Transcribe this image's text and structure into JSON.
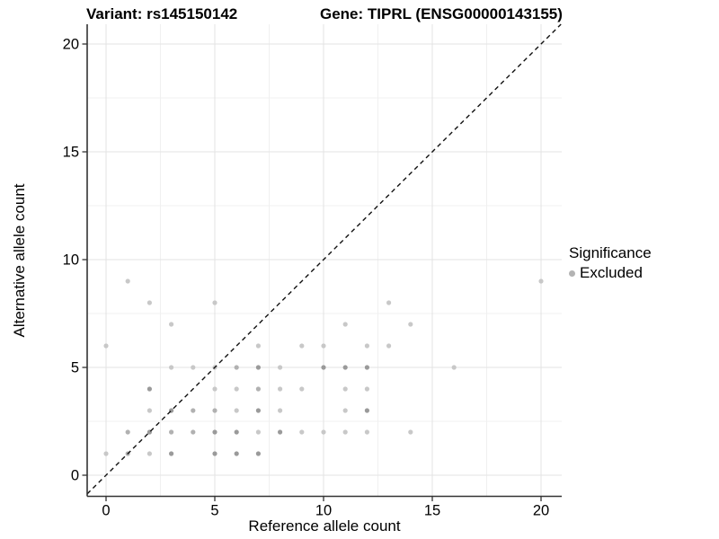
{
  "header": {
    "title_left": "Variant: rs145150142",
    "title_right": "Gene: TIPRL (ENSG00000143155)"
  },
  "colors": {
    "background": "#ffffff",
    "text": "#000000",
    "axis_line": "#333333",
    "grid_major": "#e3e3e3",
    "grid_minor": "#f0f0f0",
    "identity_line": "#111111",
    "point_light": "#c8c8c8",
    "point_medium": "#b1b1b1",
    "point_dark": "#9a9a9a",
    "legend_dot": "#b3b3b3"
  },
  "chart_data": {
    "type": "scatter",
    "title": "Variant: rs145150142 | Gene: TIPRL (ENSG00000143155)",
    "xlabel": "Reference allele count",
    "ylabel": "Alternative allele count",
    "xlim": [
      -1,
      21
    ],
    "ylim": [
      -1,
      21
    ],
    "x_ticks": [
      0,
      5,
      10,
      15,
      20
    ],
    "y_ticks": [
      0,
      5,
      10,
      15,
      20
    ],
    "x_minor": [
      2.5,
      7.5,
      12.5,
      17.5
    ],
    "y_minor": [
      2.5,
      7.5,
      12.5,
      17.5
    ],
    "grid": true,
    "identity_line": {
      "style": "dashed",
      "slope": 1,
      "intercept": 0
    },
    "legend": {
      "title": "Significance",
      "position": "right",
      "items": [
        "Excluded"
      ]
    },
    "points": [
      {
        "x": 1,
        "y": 9,
        "shade": "light"
      },
      {
        "x": 20,
        "y": 9,
        "shade": "light"
      },
      {
        "x": 2,
        "y": 8,
        "shade": "light"
      },
      {
        "x": 5,
        "y": 8,
        "shade": "light"
      },
      {
        "x": 13,
        "y": 8,
        "shade": "light"
      },
      {
        "x": 3,
        "y": 7,
        "shade": "light"
      },
      {
        "x": 11,
        "y": 7,
        "shade": "light"
      },
      {
        "x": 14,
        "y": 7,
        "shade": "light"
      },
      {
        "x": 0,
        "y": 6,
        "shade": "light"
      },
      {
        "x": 7,
        "y": 6,
        "shade": "light"
      },
      {
        "x": 9,
        "y": 6,
        "shade": "light"
      },
      {
        "x": 10,
        "y": 6,
        "shade": "light"
      },
      {
        "x": 12,
        "y": 6,
        "shade": "light"
      },
      {
        "x": 13,
        "y": 6,
        "shade": "light"
      },
      {
        "x": 3,
        "y": 5,
        "shade": "light"
      },
      {
        "x": 4,
        "y": 5,
        "shade": "light"
      },
      {
        "x": 5,
        "y": 5,
        "shade": "light"
      },
      {
        "x": 6,
        "y": 5,
        "shade": "medium"
      },
      {
        "x": 7,
        "y": 5,
        "shade": "dark"
      },
      {
        "x": 8,
        "y": 5,
        "shade": "light"
      },
      {
        "x": 10,
        "y": 5,
        "shade": "dark"
      },
      {
        "x": 11,
        "y": 5,
        "shade": "dark"
      },
      {
        "x": 12,
        "y": 5,
        "shade": "dark"
      },
      {
        "x": 16,
        "y": 5,
        "shade": "light"
      },
      {
        "x": 2,
        "y": 4,
        "shade": "dark"
      },
      {
        "x": 5,
        "y": 4,
        "shade": "light"
      },
      {
        "x": 6,
        "y": 4,
        "shade": "light"
      },
      {
        "x": 7,
        "y": 4,
        "shade": "medium"
      },
      {
        "x": 8,
        "y": 4,
        "shade": "light"
      },
      {
        "x": 9,
        "y": 4,
        "shade": "light"
      },
      {
        "x": 11,
        "y": 4,
        "shade": "light"
      },
      {
        "x": 12,
        "y": 4,
        "shade": "light"
      },
      {
        "x": 2,
        "y": 3,
        "shade": "light"
      },
      {
        "x": 3,
        "y": 3,
        "shade": "dark"
      },
      {
        "x": 4,
        "y": 3,
        "shade": "medium"
      },
      {
        "x": 5,
        "y": 3,
        "shade": "medium"
      },
      {
        "x": 6,
        "y": 3,
        "shade": "light"
      },
      {
        "x": 7,
        "y": 3,
        "shade": "dark"
      },
      {
        "x": 8,
        "y": 3,
        "shade": "light"
      },
      {
        "x": 11,
        "y": 3,
        "shade": "light"
      },
      {
        "x": 12,
        "y": 3,
        "shade": "dark"
      },
      {
        "x": 1,
        "y": 2,
        "shade": "medium"
      },
      {
        "x": 2,
        "y": 2,
        "shade": "dark"
      },
      {
        "x": 3,
        "y": 2,
        "shade": "medium"
      },
      {
        "x": 4,
        "y": 2,
        "shade": "medium"
      },
      {
        "x": 5,
        "y": 2,
        "shade": "dark"
      },
      {
        "x": 6,
        "y": 2,
        "shade": "dark"
      },
      {
        "x": 7,
        "y": 2,
        "shade": "light"
      },
      {
        "x": 8,
        "y": 2,
        "shade": "dark"
      },
      {
        "x": 9,
        "y": 2,
        "shade": "light"
      },
      {
        "x": 10,
        "y": 2,
        "shade": "light"
      },
      {
        "x": 11,
        "y": 2,
        "shade": "light"
      },
      {
        "x": 12,
        "y": 2,
        "shade": "light"
      },
      {
        "x": 14,
        "y": 2,
        "shade": "light"
      },
      {
        "x": 0,
        "y": 1,
        "shade": "light"
      },
      {
        "x": 1,
        "y": 1,
        "shade": "medium"
      },
      {
        "x": 2,
        "y": 1,
        "shade": "light"
      },
      {
        "x": 3,
        "y": 1,
        "shade": "dark"
      },
      {
        "x": 5,
        "y": 1,
        "shade": "dark"
      },
      {
        "x": 6,
        "y": 1,
        "shade": "dark"
      },
      {
        "x": 7,
        "y": 1,
        "shade": "dark"
      }
    ]
  }
}
